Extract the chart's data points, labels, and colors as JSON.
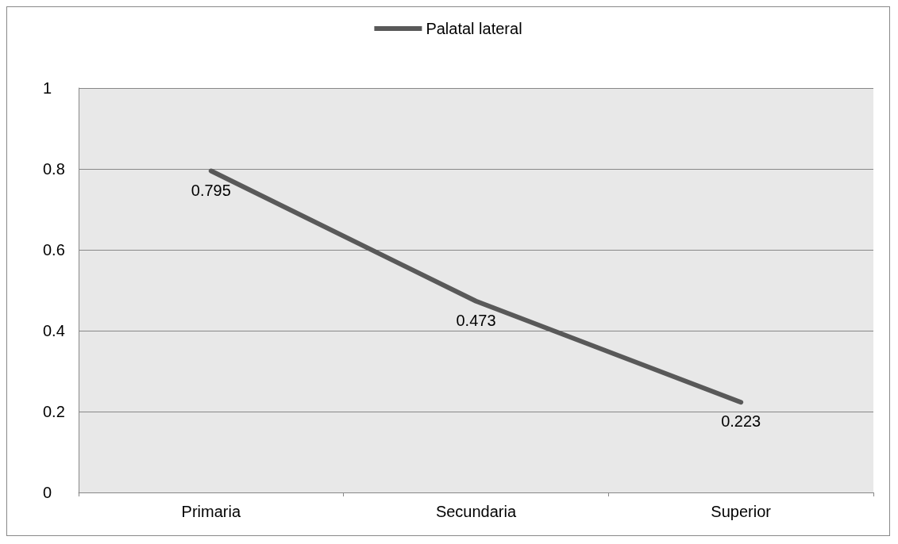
{
  "chart_data": {
    "type": "line",
    "categories": [
      "Primaria",
      "Secundaria",
      "Superior"
    ],
    "series": [
      {
        "name": "Palatal lateral",
        "color": "#595959",
        "values": [
          0.795,
          0.473,
          0.223
        ]
      }
    ],
    "ylim": [
      0,
      1
    ],
    "yticks": [
      0,
      0.2,
      0.4,
      0.6,
      0.8,
      1
    ],
    "grid": "y",
    "legend": "top",
    "marker": "none",
    "line_style": "solid",
    "data_labels": true
  }
}
